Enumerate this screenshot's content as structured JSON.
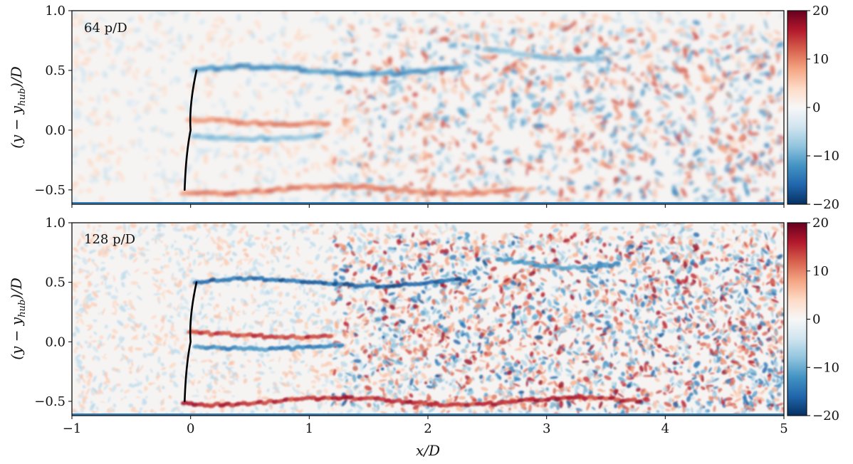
{
  "chart_data": [
    {
      "type": "heatmap",
      "annotation": "64 p/D",
      "ylabel": "(y − y_hub)/D",
      "ylabel_parts": {
        "main": "(y − y",
        "sub": "hub",
        "tail": ")/D"
      },
      "xlim": [
        -1,
        5
      ],
      "ylim": [
        -0.62,
        1.0
      ],
      "x_ticks": [
        -1,
        0,
        1,
        2,
        3,
        4,
        5
      ],
      "x_tick_labels_shown": false,
      "y_ticks": [
        -0.5,
        0.0,
        0.5,
        1.0
      ],
      "y_tick_labels": [
        "−0.5",
        "0.0",
        "0.5",
        "1.0"
      ],
      "colorbar": {
        "range": [
          -20,
          20
        ],
        "ticks": [
          20,
          10,
          0,
          -10,
          -20
        ],
        "tick_labels": [
          "20",
          "10",
          "0",
          "−10",
          "−20"
        ],
        "colormap": "RdBu_r",
        "colors": [
          "#053061",
          "#2166ac",
          "#4393c3",
          "#92c5de",
          "#d1e5f0",
          "#f7f7f7",
          "#fddbc7",
          "#f4a582",
          "#d6604d",
          "#b2182b",
          "#67001f"
        ]
      },
      "blade": {
        "root": [
          0.05,
          0.5
        ],
        "tip": [
          -0.05,
          -0.5
        ],
        "mid": [
          0.0,
          0.0
        ]
      },
      "structures": [
        {
          "sign": "neg",
          "x0": 0.05,
          "x1": 2.3,
          "y": 0.5,
          "amp": 0.03,
          "val": 13
        },
        {
          "sign": "neg",
          "x0": 2.5,
          "x1": 3.5,
          "y": 0.65,
          "amp": 0.06,
          "val": 9
        },
        {
          "sign": "pos",
          "x0": 0.0,
          "x1": 1.15,
          "y": 0.07,
          "amp": 0.02,
          "val": 10
        },
        {
          "sign": "neg",
          "x0": 0.05,
          "x1": 1.1,
          "y": -0.05,
          "amp": 0.02,
          "val": 10
        },
        {
          "sign": "pos",
          "x0": -0.05,
          "x1": 2.8,
          "y": -0.5,
          "amp": 0.03,
          "val": 11
        }
      ]
    },
    {
      "type": "heatmap",
      "annotation": "128 p/D",
      "ylabel": "(y − y_hub)/D",
      "ylabel_parts": {
        "main": "(y − y",
        "sub": "hub",
        "tail": ")/D"
      },
      "xlabel": "x/D",
      "xlim": [
        -1,
        5
      ],
      "ylim": [
        -0.62,
        1.0
      ],
      "x_ticks": [
        -1,
        0,
        1,
        2,
        3,
        4,
        5
      ],
      "x_tick_labels": [
        "−1",
        "0",
        "1",
        "2",
        "3",
        "4",
        "5"
      ],
      "y_ticks": [
        -0.5,
        0.0,
        0.5,
        1.0
      ],
      "y_tick_labels": [
        "−0.5",
        "0.0",
        "0.5",
        "1.0"
      ],
      "colorbar": {
        "range": [
          -20,
          20
        ],
        "ticks": [
          20,
          10,
          0,
          -10,
          -20
        ],
        "tick_labels": [
          "20",
          "10",
          "0",
          "−10",
          "−20"
        ],
        "colormap": "RdBu_r",
        "colors": [
          "#053061",
          "#2166ac",
          "#4393c3",
          "#92c5de",
          "#d1e5f0",
          "#f7f7f7",
          "#fddbc7",
          "#f4a582",
          "#d6604d",
          "#b2182b",
          "#67001f"
        ]
      },
      "blade": {
        "root": [
          0.05,
          0.5
        ],
        "tip": [
          -0.05,
          -0.5
        ],
        "mid": [
          0.0,
          0.0
        ]
      },
      "structures": [
        {
          "sign": "neg",
          "x0": 0.05,
          "x1": 2.3,
          "y": 0.5,
          "amp": 0.03,
          "val": 17
        },
        {
          "sign": "neg",
          "x0": 2.6,
          "x1": 3.6,
          "y": 0.68,
          "amp": 0.06,
          "val": 12
        },
        {
          "sign": "pos",
          "x0": 0.0,
          "x1": 1.2,
          "y": 0.06,
          "amp": 0.02,
          "val": 15
        },
        {
          "sign": "neg",
          "x0": 0.05,
          "x1": 1.3,
          "y": -0.04,
          "amp": 0.02,
          "val": 14
        },
        {
          "sign": "pos",
          "x0": -0.05,
          "x1": 3.8,
          "y": -0.5,
          "amp": 0.03,
          "val": 16
        }
      ]
    }
  ]
}
